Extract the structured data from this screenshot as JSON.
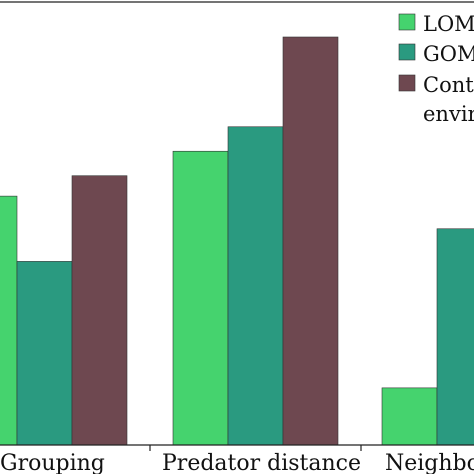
{
  "chart_data": {
    "type": "bar",
    "categories": [
      "Grouping",
      "Predator distance",
      "Neighbor"
    ],
    "category_labels": [
      "Grouping",
      "Predator distance",
      "Neighborh"
    ],
    "series": [
      {
        "name": "LOM",
        "legend_label": "LOM",
        "color": "#45d36e",
        "values": [
          0.61,
          0.72,
          0.14
        ]
      },
      {
        "name": "GOM",
        "legend_label": "GOM",
        "color": "#2a9a80",
        "values": [
          0.45,
          0.78,
          0.53
        ]
      },
      {
        "name": "Cont... envir...",
        "legend_label": "Cont",
        "legend_label_line2": "envir",
        "color": "#6e4850",
        "values": [
          0.66,
          1.0,
          null
        ]
      }
    ],
    "ylim": [
      0,
      1.1
    ],
    "grid": false,
    "legend_position": "top-right"
  }
}
